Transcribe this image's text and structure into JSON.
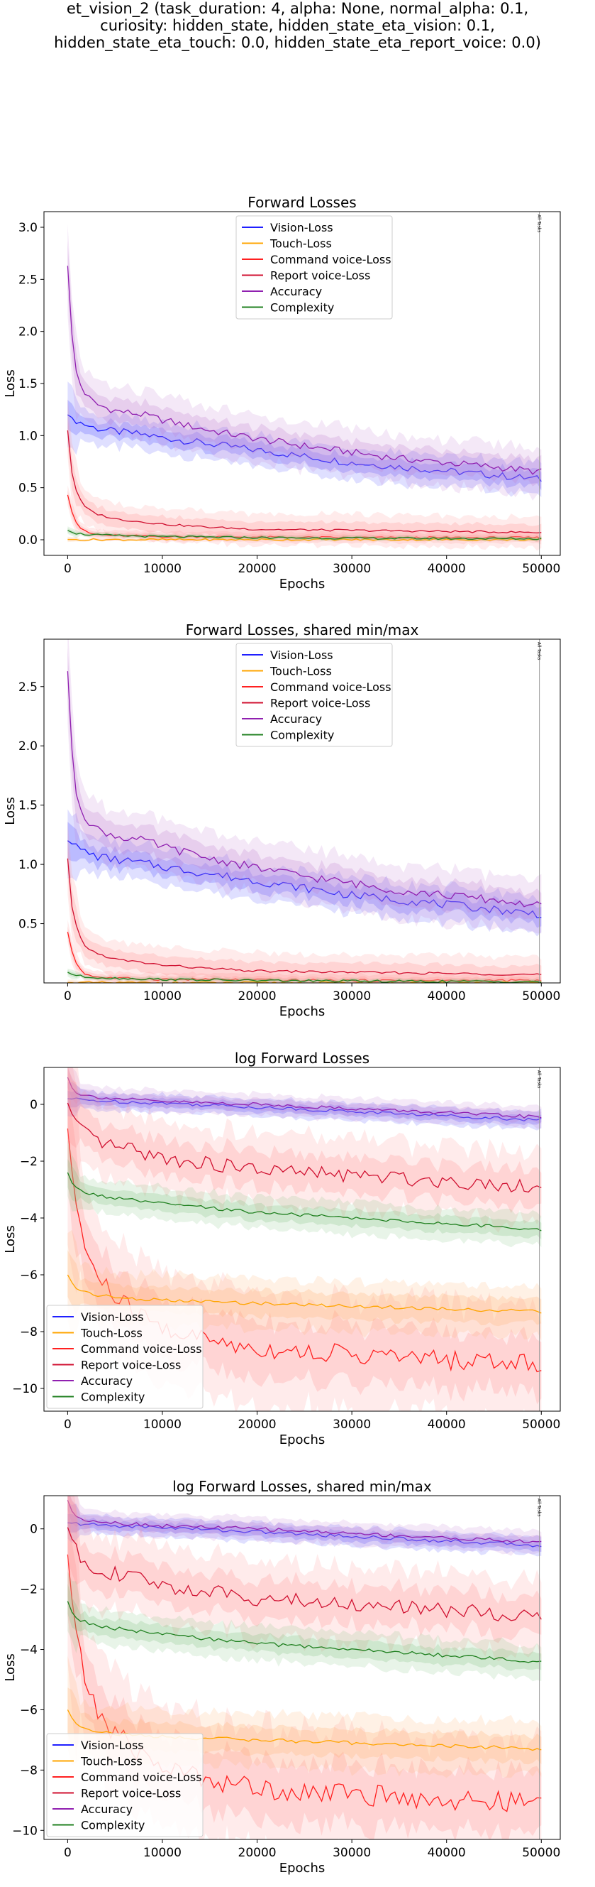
{
  "suptitle_lines": [
    "et_vision_2 (task_duration: 4, alpha: None, normal_alpha: 0.1,",
    "curiosity: hidden_state, hidden_state_eta_vision: 0.1,",
    "hidden_state_eta_touch: 0.0, hidden_state_eta_report_voice: 0.0)"
  ],
  "colors": {
    "vision": "#1f1fff",
    "touch": "#ffa500",
    "command": "#ff2020",
    "report": "#d01030",
    "accuracy": "#9020b0",
    "complexity": "#208020",
    "vision_band": "#5050ff",
    "accuracy_band": "#c080d0",
    "command_band": "#ff9090",
    "touch_band": "#ffb070",
    "complexity_band": "#80c080"
  },
  "chart_data": [
    {
      "type": "line",
      "title": "Forward Losses",
      "xlabel": "Epochs",
      "ylabel": "Loss",
      "xlim": [
        -2500,
        52000
      ],
      "ylim": [
        -0.15,
        3.15
      ],
      "xticks": [
        "0",
        "10000",
        "20000",
        "30000",
        "40000",
        "50000"
      ],
      "xtick_values": [
        0,
        10000,
        20000,
        30000,
        40000,
        50000
      ],
      "yticks": [
        "0.0",
        "0.5",
        "1.0",
        "1.5",
        "2.0",
        "2.5",
        "3.0"
      ],
      "ytick_values": [
        0,
        0.5,
        1,
        1.5,
        2,
        2.5,
        3
      ],
      "legend": "upper-center",
      "vline_label": "All Tasks",
      "vline_x": 49800,
      "series": [
        {
          "name": "Vision-Loss",
          "x": [
            0,
            1000,
            2000,
            3000,
            5000,
            8000,
            10000,
            15000,
            20000,
            25000,
            30000,
            35000,
            40000,
            45000,
            50000
          ],
          "values": [
            1.2,
            1.14,
            1.1,
            1.07,
            1.04,
            1.01,
            0.98,
            0.92,
            0.86,
            0.8,
            0.74,
            0.7,
            0.66,
            0.62,
            0.58
          ]
        },
        {
          "name": "Touch-Loss",
          "x": [
            0,
            1000,
            2000,
            5000,
            10000,
            20000,
            30000,
            40000,
            50000
          ],
          "values": [
            0.003,
            0.002,
            0.001,
            0.001,
            0.001,
            0.001,
            0.001,
            0.001,
            0.001
          ]
        },
        {
          "name": "Command voice-Loss",
          "x": [
            0,
            500,
            1000,
            1500,
            2000,
            3000,
            5000,
            8000,
            10000,
            15000,
            20000,
            30000,
            40000,
            50000
          ],
          "values": [
            0.43,
            0.25,
            0.15,
            0.1,
            0.07,
            0.05,
            0.04,
            0.035,
            0.03,
            0.03,
            0.025,
            0.02,
            0.02,
            0.02
          ]
        },
        {
          "name": "Report voice-Loss",
          "x": [
            0,
            500,
            1000,
            1500,
            2000,
            3000,
            5000,
            8000,
            10000,
            15000,
            20000,
            30000,
            40000,
            50000
          ],
          "values": [
            1.05,
            0.6,
            0.45,
            0.35,
            0.3,
            0.25,
            0.2,
            0.17,
            0.15,
            0.12,
            0.1,
            0.09,
            0.08,
            0.07
          ]
        },
        {
          "name": "Accuracy",
          "x": [
            0,
            500,
            1000,
            2000,
            3000,
            5000,
            8000,
            10000,
            15000,
            20000,
            25000,
            30000,
            35000,
            40000,
            45000,
            50000
          ],
          "values": [
            2.63,
            1.9,
            1.55,
            1.38,
            1.3,
            1.24,
            1.2,
            1.15,
            1.05,
            0.97,
            0.9,
            0.84,
            0.78,
            0.74,
            0.7,
            0.65
          ]
        },
        {
          "name": "Complexity",
          "x": [
            0,
            500,
            1000,
            2000,
            5000,
            10000,
            20000,
            30000,
            40000,
            50000
          ],
          "values": [
            0.09,
            0.07,
            0.06,
            0.05,
            0.04,
            0.03,
            0.02,
            0.015,
            0.012,
            0.01
          ]
        }
      ]
    },
    {
      "type": "line",
      "title": "Forward Losses, shared min/max",
      "xlabel": "Epochs",
      "ylabel": "Loss",
      "xlim": [
        -2500,
        52000
      ],
      "ylim": [
        0.0,
        2.9
      ],
      "xticks": [
        "0",
        "10000",
        "20000",
        "30000",
        "40000",
        "50000"
      ],
      "xtick_values": [
        0,
        10000,
        20000,
        30000,
        40000,
        50000
      ],
      "yticks": [
        "0.5",
        "1.0",
        "1.5",
        "2.0",
        "2.5"
      ],
      "ytick_values": [
        0.5,
        1,
        1.5,
        2,
        2.5
      ],
      "legend": "upper-center",
      "vline_label": "All Tasks",
      "vline_x": 49800,
      "series": [
        {
          "name": "Vision-Loss",
          "x": [
            0,
            1000,
            2000,
            3000,
            5000,
            8000,
            10000,
            15000,
            20000,
            25000,
            30000,
            35000,
            40000,
            45000,
            50000
          ],
          "values": [
            1.2,
            1.14,
            1.1,
            1.07,
            1.04,
            1.01,
            0.98,
            0.92,
            0.86,
            0.8,
            0.74,
            0.7,
            0.66,
            0.62,
            0.58
          ]
        },
        {
          "name": "Touch-Loss",
          "x": [
            0,
            1000,
            2000,
            5000,
            10000,
            20000,
            30000,
            40000,
            50000
          ],
          "values": [
            0.003,
            0.002,
            0.001,
            0.001,
            0.001,
            0.001,
            0.001,
            0.001,
            0.001
          ]
        },
        {
          "name": "Command voice-Loss",
          "x": [
            0,
            500,
            1000,
            1500,
            2000,
            3000,
            5000,
            8000,
            10000,
            15000,
            20000,
            30000,
            40000,
            50000
          ],
          "values": [
            0.43,
            0.25,
            0.15,
            0.1,
            0.07,
            0.05,
            0.04,
            0.035,
            0.03,
            0.03,
            0.025,
            0.02,
            0.02,
            0.02
          ]
        },
        {
          "name": "Report voice-Loss",
          "x": [
            0,
            500,
            1000,
            1500,
            2000,
            3000,
            5000,
            8000,
            10000,
            15000,
            20000,
            30000,
            40000,
            50000
          ],
          "values": [
            1.05,
            0.6,
            0.45,
            0.35,
            0.3,
            0.25,
            0.2,
            0.17,
            0.15,
            0.12,
            0.1,
            0.09,
            0.08,
            0.07
          ]
        },
        {
          "name": "Accuracy",
          "x": [
            0,
            500,
            1000,
            2000,
            3000,
            5000,
            8000,
            10000,
            15000,
            20000,
            25000,
            30000,
            35000,
            40000,
            45000,
            50000
          ],
          "values": [
            2.63,
            1.9,
            1.55,
            1.38,
            1.3,
            1.24,
            1.2,
            1.15,
            1.05,
            0.97,
            0.9,
            0.84,
            0.78,
            0.74,
            0.7,
            0.65
          ]
        },
        {
          "name": "Complexity",
          "x": [
            0,
            500,
            1000,
            2000,
            5000,
            10000,
            20000,
            30000,
            40000,
            50000
          ],
          "values": [
            0.09,
            0.07,
            0.06,
            0.05,
            0.04,
            0.03,
            0.02,
            0.015,
            0.012,
            0.01
          ]
        }
      ]
    },
    {
      "type": "line",
      "title": "log Forward Losses",
      "xlabel": "Epochs",
      "ylabel": "Loss",
      "xlim": [
        -2500,
        52000
      ],
      "ylim": [
        -10.8,
        1.3
      ],
      "xticks": [
        "0",
        "10000",
        "20000",
        "30000",
        "40000",
        "50000"
      ],
      "xtick_values": [
        0,
        10000,
        20000,
        30000,
        40000,
        50000
      ],
      "yticks": [
        "−10",
        "−8",
        "−6",
        "−4",
        "−2",
        "0"
      ],
      "ytick_values": [
        -10,
        -8,
        -6,
        -4,
        -2,
        0
      ],
      "legend": "lower-left",
      "vline_label": "All Tasks",
      "vline_x": 49800,
      "series": [
        {
          "name": "Vision-Loss",
          "x": [
            0,
            2000,
            5000,
            10000,
            20000,
            30000,
            40000,
            50000
          ],
          "values": [
            0.2,
            0.15,
            0.1,
            0.05,
            -0.1,
            -0.25,
            -0.4,
            -0.55
          ]
        },
        {
          "name": "Touch-Loss",
          "x": [
            0,
            500,
            1000,
            2000,
            3000,
            5000,
            10000,
            20000,
            30000,
            40000,
            50000
          ],
          "values": [
            -6.0,
            -6.3,
            -6.5,
            -6.6,
            -6.7,
            -6.8,
            -6.9,
            -7.0,
            -7.1,
            -7.2,
            -7.3
          ]
        },
        {
          "name": "Command voice-Loss",
          "x": [
            0,
            500,
            1000,
            2000,
            3000,
            5000,
            8000,
            10000,
            15000,
            20000,
            30000,
            40000,
            50000
          ],
          "values": [
            -0.85,
            -2.5,
            -3.8,
            -5.2,
            -6.0,
            -6.8,
            -7.5,
            -7.9,
            -8.3,
            -8.6,
            -8.8,
            -9.0,
            -9.1
          ]
        },
        {
          "name": "Report voice-Loss",
          "x": [
            0,
            1000,
            2000,
            3000,
            5000,
            8000,
            10000,
            15000,
            20000,
            30000,
            40000,
            50000
          ],
          "values": [
            0.05,
            -0.8,
            -1.1,
            -1.3,
            -1.5,
            -1.7,
            -1.9,
            -2.1,
            -2.3,
            -2.5,
            -2.7,
            -2.9
          ]
        },
        {
          "name": "Accuracy",
          "x": [
            0,
            500,
            1000,
            2000,
            5000,
            10000,
            20000,
            30000,
            40000,
            50000
          ],
          "values": [
            0.95,
            0.55,
            0.4,
            0.3,
            0.2,
            0.1,
            0.0,
            -0.15,
            -0.3,
            -0.45
          ]
        },
        {
          "name": "Complexity",
          "x": [
            0,
            500,
            1000,
            2000,
            3000,
            5000,
            10000,
            20000,
            30000,
            40000,
            50000
          ],
          "values": [
            -2.4,
            -2.8,
            -3.0,
            -3.1,
            -3.2,
            -3.3,
            -3.5,
            -3.8,
            -4.0,
            -4.2,
            -4.4
          ]
        }
      ]
    },
    {
      "type": "line",
      "title": "log Forward Losses, shared min/max",
      "xlabel": "Epochs",
      "ylabel": "Loss",
      "xlim": [
        -2500,
        52000
      ],
      "ylim": [
        -10.3,
        1.1
      ],
      "xticks": [
        "0",
        "10000",
        "20000",
        "30000",
        "40000",
        "50000"
      ],
      "xtick_values": [
        0,
        10000,
        20000,
        30000,
        40000,
        50000
      ],
      "yticks": [
        "−10",
        "−8",
        "−6",
        "−4",
        "−2",
        "0"
      ],
      "ytick_values": [
        -10,
        -8,
        -6,
        -4,
        -2,
        0
      ],
      "legend": "lower-left",
      "vline_label": "All Tasks",
      "vline_x": 49800,
      "series": [
        {
          "name": "Vision-Loss",
          "x": [
            0,
            2000,
            5000,
            10000,
            20000,
            30000,
            40000,
            50000
          ],
          "values": [
            0.2,
            0.15,
            0.1,
            0.05,
            -0.1,
            -0.25,
            -0.4,
            -0.55
          ]
        },
        {
          "name": "Touch-Loss",
          "x": [
            0,
            500,
            1000,
            2000,
            3000,
            5000,
            10000,
            20000,
            30000,
            40000,
            50000
          ],
          "values": [
            -6.0,
            -6.3,
            -6.5,
            -6.6,
            -6.7,
            -6.8,
            -6.9,
            -7.0,
            -7.1,
            -7.2,
            -7.3
          ]
        },
        {
          "name": "Command voice-Loss",
          "x": [
            0,
            500,
            1000,
            2000,
            3000,
            5000,
            8000,
            10000,
            15000,
            20000,
            30000,
            40000,
            50000
          ],
          "values": [
            -0.85,
            -2.5,
            -3.8,
            -5.2,
            -6.0,
            -6.8,
            -7.5,
            -7.9,
            -8.3,
            -8.6,
            -8.8,
            -9.0,
            -9.1
          ]
        },
        {
          "name": "Report voice-Loss",
          "x": [
            0,
            1000,
            2000,
            3000,
            5000,
            8000,
            10000,
            15000,
            20000,
            30000,
            40000,
            50000
          ],
          "values": [
            0.05,
            -0.8,
            -1.1,
            -1.3,
            -1.5,
            -1.7,
            -1.9,
            -2.1,
            -2.3,
            -2.5,
            -2.7,
            -2.9
          ]
        },
        {
          "name": "Accuracy",
          "x": [
            0,
            500,
            1000,
            2000,
            5000,
            10000,
            20000,
            30000,
            40000,
            50000
          ],
          "values": [
            0.95,
            0.55,
            0.4,
            0.3,
            0.2,
            0.1,
            0.0,
            -0.15,
            -0.3,
            -0.45
          ]
        },
        {
          "name": "Complexity",
          "x": [
            0,
            500,
            1000,
            2000,
            3000,
            5000,
            10000,
            20000,
            30000,
            40000,
            50000
          ],
          "values": [
            -2.4,
            -2.8,
            -3.0,
            -3.1,
            -3.2,
            -3.3,
            -3.5,
            -3.8,
            -4.0,
            -4.2,
            -4.4
          ]
        }
      ]
    }
  ]
}
